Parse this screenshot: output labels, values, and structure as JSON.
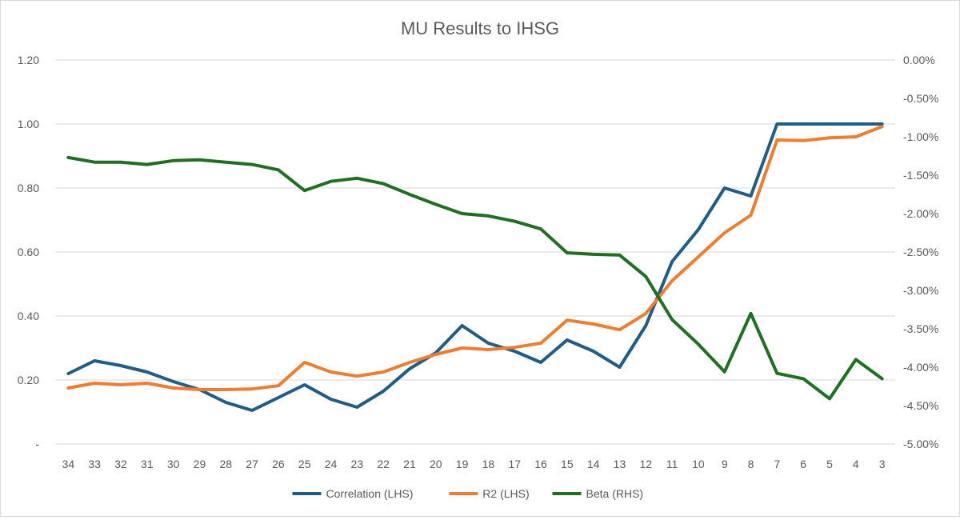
{
  "chart_data": {
    "type": "line",
    "title": "MU Results to IHSG",
    "xlabel": "",
    "ylabel": "",
    "categories": [
      "34",
      "33",
      "32",
      "31",
      "30",
      "29",
      "28",
      "27",
      "26",
      "25",
      "24",
      "23",
      "22",
      "21",
      "20",
      "19",
      "18",
      "17",
      "16",
      "15",
      "14",
      "13",
      "12",
      "11",
      "10",
      "9",
      "8",
      "7",
      "6",
      "5",
      "4",
      "3"
    ],
    "y_left": {
      "ylim": [
        0,
        1.2
      ],
      "ticks": [
        0,
        0.2,
        0.4,
        0.6,
        0.8,
        1.0,
        1.2
      ],
      "tick_labels": [
        "-",
        "0.20",
        "0.40",
        "0.60",
        "0.80",
        "1.00",
        "1.20"
      ]
    },
    "y_right": {
      "ylim": [
        -5.0,
        0.0
      ],
      "ticks": [
        -5.0,
        -4.5,
        -4.0,
        -3.5,
        -3.0,
        -2.5,
        -2.0,
        -1.5,
        -1.0,
        -0.5,
        0.0
      ],
      "tick_labels": [
        "-5.00%",
        "-4.50%",
        "-4.00%",
        "-3.50%",
        "-3.00%",
        "-2.50%",
        "-2.00%",
        "-1.50%",
        "-1.00%",
        "-0.50%",
        "0.00%"
      ]
    },
    "grid": true,
    "legend_position": "bottom",
    "series": [
      {
        "name": "Correlation (LHS)",
        "axis": "left",
        "color": "#1f5c86",
        "values": [
          0.22,
          0.26,
          0.245,
          0.225,
          0.195,
          0.17,
          0.13,
          0.105,
          0.145,
          0.185,
          0.14,
          0.115,
          0.165,
          0.235,
          0.285,
          0.37,
          0.315,
          0.29,
          0.255,
          0.325,
          0.29,
          0.24,
          0.37,
          0.57,
          0.67,
          0.8,
          0.775,
          1.0,
          1.0,
          1.0,
          1.0,
          1.0
        ]
      },
      {
        "name": "R2 (LHS)",
        "axis": "left",
        "color": "#ed7d31",
        "values": [
          0.175,
          0.19,
          0.185,
          0.19,
          0.175,
          0.17,
          0.17,
          0.172,
          0.182,
          0.255,
          0.225,
          0.212,
          0.225,
          0.255,
          0.28,
          0.3,
          0.295,
          0.302,
          0.315,
          0.387,
          0.375,
          0.357,
          0.408,
          0.51,
          0.585,
          0.66,
          0.715,
          0.95,
          0.948,
          0.957,
          0.96,
          0.992
        ]
      },
      {
        "name": "Beta (RHS)",
        "axis": "right",
        "color": "#1e6f20",
        "values": [
          -1.27,
          -1.33,
          -1.33,
          -1.36,
          -1.31,
          -1.3,
          -1.33,
          -1.36,
          -1.43,
          -1.7,
          -1.58,
          -1.54,
          -1.61,
          -1.75,
          -1.88,
          -2.0,
          -2.03,
          -2.1,
          -2.2,
          -2.51,
          -2.53,
          -2.54,
          -2.82,
          -3.38,
          -3.7,
          -4.06,
          -3.3,
          -4.08,
          -4.15,
          -4.41,
          -3.9,
          -4.15
        ]
      }
    ]
  }
}
